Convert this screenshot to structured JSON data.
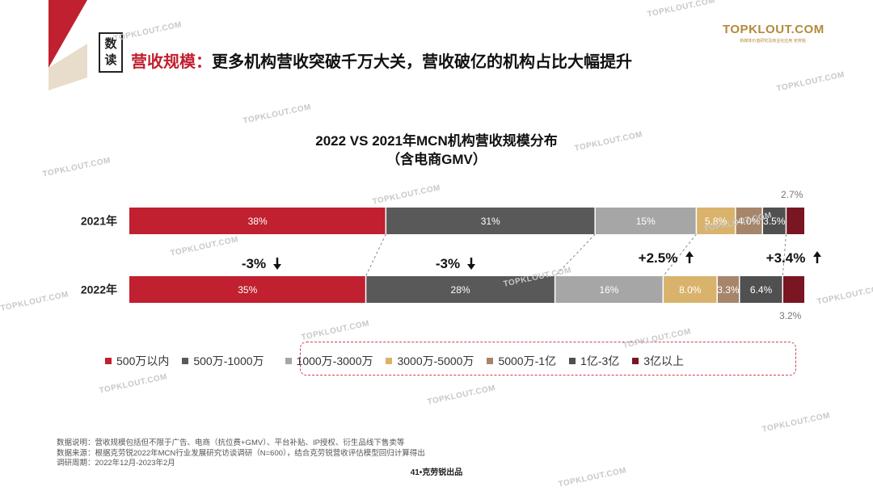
{
  "header": {
    "tag_line1": "数",
    "tag_line2": "读",
    "headline_highlight": "营收规模：",
    "headline_rest": "更多机构营收突破千万大关，营收破亿的机构占比大幅提升"
  },
  "logo": {
    "main": "TOPKLOUT.COM",
    "sub": "新媒体价值研究及商业化应用 克劳锐"
  },
  "watermark_text": "TOPKLOUT.COM",
  "chart_data": {
    "type": "bar",
    "orientation": "horizontal",
    "stacked": "percent",
    "title": "2022 VS 2021年MCN机构营收规模分布",
    "subtitle": "（含电商GMV）",
    "categories": [
      "2021年",
      "2022年"
    ],
    "series": [
      {
        "name": "500万以内",
        "color": "#c0202f",
        "values": [
          38,
          35
        ],
        "labels": [
          "38%",
          "35%"
        ]
      },
      {
        "name": "500万-1000万",
        "color": "#595959",
        "values": [
          31,
          28
        ],
        "labels": [
          "31%",
          "28%"
        ]
      },
      {
        "name": "1000万-3000万",
        "color": "#a6a6a6",
        "values": [
          15,
          16
        ],
        "labels": [
          "15%",
          "16%"
        ]
      },
      {
        "name": "3000万-5000万",
        "color": "#d9b36c",
        "values": [
          5.8,
          8.0
        ],
        "labels": [
          "5.8%",
          "8.0%"
        ]
      },
      {
        "name": "5000万-1亿",
        "color": "#a6856a",
        "values": [
          4.0,
          3.3
        ],
        "labels": [
          "4.0%",
          "3.3%"
        ]
      },
      {
        "name": "1亿-3亿",
        "color": "#505050",
        "values": [
          3.5,
          6.4
        ],
        "labels": [
          "3.5%",
          "6.4%"
        ]
      },
      {
        "name": "3亿以上",
        "color": "#7a1522",
        "values": [
          2.7,
          3.2
        ],
        "labels": [
          "2.7%",
          "3.2%"
        ]
      }
    ],
    "annotations": [
      {
        "text": "-3%",
        "arrow": "down"
      },
      {
        "text": "-3%",
        "arrow": "down"
      },
      {
        "text": "+2.5%",
        "arrow": "up"
      },
      {
        "text": "+3.4%",
        "arrow": "up"
      }
    ],
    "legend_position": "bottom",
    "grid": false
  },
  "footer": {
    "line1": "数据说明：营收规模包括但不限于广告、电商（抗位费+GMV）、平台补贴、IP授权、衍生品线下售卖等",
    "line2": "数据来源：根据克劳锐2022年MCN行业发展研究访谈调研（N=600），结合克劳锐营收评估模型回归计算得出",
    "line3": "调研周期：2022年12月-2023年2月",
    "page_number": "41•克劳锐出品"
  }
}
